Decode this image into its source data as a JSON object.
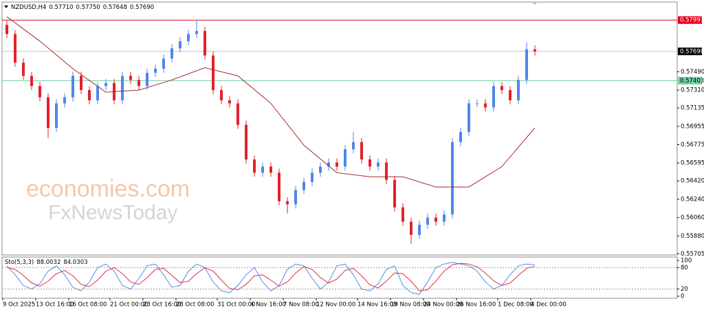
{
  "chart_data": {
    "type": "candlestick",
    "title": "NZDUSD,H4",
    "last_ohlc": [
      {
        "value": 0.5771,
        "label": "0.57710"
      },
      {
        "value": 0.5775,
        "label": "0.57750"
      },
      {
        "value": 0.57648,
        "label": "0.57648"
      },
      {
        "value": 0.5769,
        "label": "0.57690"
      }
    ],
    "watermark": [
      "economies.com",
      "FxNewsToday"
    ],
    "categories": [
      "9 Oct 2025",
      null,
      null,
      null,
      "13 Oct 16:00",
      null,
      null,
      null,
      "16 Oct 08:00",
      null,
      null,
      null,
      null,
      "21 Oct 00:00",
      null,
      null,
      null,
      "23 Oct 16:00",
      null,
      null,
      null,
      "28 Oct 08:00",
      null,
      null,
      null,
      null,
      "31 Oct 00:00",
      null,
      null,
      null,
      "4 Nov 16:00",
      null,
      null,
      null,
      "7 Nov 08:00",
      null,
      null,
      null,
      "12 Nov 00:00",
      null,
      null,
      null,
      null,
      "14 Nov 16:00",
      null,
      null,
      null,
      "19 Nov 08:00",
      null,
      null,
      null,
      "24 Nov 00:00",
      null,
      null,
      null,
      "26 Nov 16:00",
      null,
      null,
      null,
      null,
      "1 Dec 08:00",
      null,
      null,
      null,
      "4 Dec 00:00"
    ],
    "open": [
      0.5795,
      0.5786,
      0.5758,
      0.5745,
      0.5735,
      0.5724,
      0.5694,
      0.5718,
      0.5724,
      0.5745,
      0.5731,
      0.5721,
      0.5735,
      0.5738,
      0.5721,
      0.5745,
      0.5741,
      0.5735,
      0.5748,
      0.5752,
      0.5762,
      0.5772,
      0.5779,
      0.5786,
      0.5789,
      0.5765,
      0.5731,
      0.5721,
      0.5718,
      0.5697,
      0.5663,
      0.565,
      0.5656,
      0.565,
      0.5622,
      0.5619,
      0.5633,
      0.5641,
      0.565,
      0.5656,
      0.566,
      0.5656,
      0.5673,
      0.568,
      0.5663,
      0.5656,
      0.566,
      0.5643,
      0.5616,
      0.5602,
      0.5589,
      0.5599,
      0.5606,
      0.5602,
      0.5609,
      0.568,
      0.569,
      0.5718,
      0.5718,
      0.5714,
      0.5735,
      0.5731,
      0.5721,
      0.5741,
      0.5771
    ],
    "high": [
      0.5799,
      0.579,
      0.5762,
      0.5749,
      0.5739,
      0.5728,
      0.5722,
      0.5728,
      0.5749,
      0.5749,
      0.5735,
      0.5739,
      0.5742,
      0.5742,
      0.5749,
      0.5749,
      0.5745,
      0.5752,
      0.5756,
      0.5766,
      0.5776,
      0.5783,
      0.579,
      0.58,
      0.5793,
      0.5769,
      0.5735,
      0.5725,
      0.5722,
      0.5701,
      0.5667,
      0.566,
      0.566,
      0.5654,
      0.5626,
      0.5637,
      0.5645,
      0.5654,
      0.566,
      0.5664,
      0.5664,
      0.5677,
      0.569,
      0.5684,
      0.5667,
      0.5664,
      0.5664,
      0.5647,
      0.562,
      0.5606,
      0.5603,
      0.561,
      0.561,
      0.5613,
      0.5684,
      0.5694,
      0.5722,
      0.5722,
      0.5722,
      0.5739,
      0.5739,
      0.5735,
      0.5745,
      0.5778,
      0.5775
    ],
    "low": [
      0.5782,
      0.5754,
      0.5741,
      0.5731,
      0.572,
      0.5684,
      0.569,
      0.5714,
      0.572,
      0.5727,
      0.5717,
      0.5717,
      0.5731,
      0.5717,
      0.5717,
      0.5737,
      0.5731,
      0.5731,
      0.5744,
      0.5748,
      0.5758,
      0.5768,
      0.5775,
      0.5782,
      0.5761,
      0.5727,
      0.5717,
      0.5714,
      0.5693,
      0.5659,
      0.5646,
      0.5646,
      0.5646,
      0.5618,
      0.561,
      0.5615,
      0.5629,
      0.5637,
      0.5646,
      0.5652,
      0.5652,
      0.5652,
      0.5669,
      0.5659,
      0.5652,
      0.5652,
      0.5639,
      0.5612,
      0.5598,
      0.558,
      0.5585,
      0.5595,
      0.5598,
      0.5598,
      0.5605,
      0.5676,
      0.5686,
      0.5714,
      0.571,
      0.571,
      0.5727,
      0.5717,
      0.5717,
      0.5737,
      0.57648
    ],
    "close": [
      0.5786,
      0.5758,
      0.5745,
      0.5735,
      0.5724,
      0.5694,
      0.5718,
      0.5724,
      0.5745,
      0.5731,
      0.5721,
      0.5735,
      0.5738,
      0.5721,
      0.5745,
      0.5741,
      0.5735,
      0.5748,
      0.5752,
      0.5762,
      0.5772,
      0.5779,
      0.5786,
      0.5789,
      0.5765,
      0.5731,
      0.5721,
      0.5718,
      0.5697,
      0.5663,
      0.565,
      0.5656,
      0.565,
      0.5622,
      0.5619,
      0.5633,
      0.5641,
      0.565,
      0.5656,
      0.566,
      0.5656,
      0.5673,
      0.568,
      0.5663,
      0.5656,
      0.566,
      0.5643,
      0.5616,
      0.5602,
      0.5589,
      0.5599,
      0.5606,
      0.5602,
      0.5609,
      0.568,
      0.569,
      0.5718,
      0.5718,
      0.5714,
      0.5735,
      0.5731,
      0.5721,
      0.5741,
      0.5771,
      0.5769
    ],
    "up_color": "#4f86e8",
    "down_color": "#e3202b",
    "ma": {
      "color": "#a52a2a",
      "x": [
        0,
        4,
        8,
        12,
        16,
        20,
        24,
        28,
        32,
        36,
        40,
        44,
        48,
        52,
        56,
        60,
        64
      ],
      "values": [
        0.5803,
        0.5779,
        0.5752,
        0.5729,
        0.5731,
        0.5741,
        0.5753,
        0.5745,
        0.5718,
        0.5677,
        0.565,
        0.5646,
        0.5646,
        0.5636,
        0.5636,
        0.5656,
        0.5694
      ]
    },
    "ylim": [
      0.557,
      0.5814
    ],
    "yticks": [
      {
        "value": 0.5749,
        "label": "0.57490"
      },
      {
        "value": 0.5731,
        "label": "0.57310"
      },
      0.57135,
      0.56955,
      0.56775,
      0.56595,
      {
        "value": 0.5642,
        "label": "0.56420"
      },
      {
        "value": 0.5624,
        "label": "0.56240"
      },
      {
        "value": 0.5606,
        "label": "0.56060"
      },
      {
        "value": 0.5588,
        "label": "0.55880"
      },
      0.55705
    ],
    "levels": [
      {
        "value": 0.57997,
        "color": "#e8001c",
        "box": "#e8001c",
        "text_color": "#ffffff"
      },
      {
        "value": {
          "value": 0.5769,
          "label": "0.57690"
        },
        "color": "#c4c4c4",
        "box": "#000000",
        "text_color": "#ffffff"
      },
      {
        "value": 0.57403,
        "color": "#6fcfa2",
        "box": "#6fcfa2",
        "text_color": "#000000"
      }
    ],
    "indicator": {
      "type": "line",
      "title": "Sto(5,3,3)",
      "readings": [
        88.0032,
        84.0303
      ],
      "ylim": [
        0,
        100
      ],
      "yticks": [
        100,
        80,
        20,
        0
      ],
      "levels": [
        80,
        20
      ],
      "series": [
        {
          "color": "#4a90e2",
          "values": [
            85,
            60,
            30,
            20,
            35,
            70,
            85,
            60,
            25,
            15,
            40,
            80,
            90,
            70,
            30,
            20,
            50,
            85,
            90,
            60,
            25,
            30,
            70,
            90,
            80,
            40,
            15,
            10,
            30,
            60,
            80,
            40,
            15,
            30,
            75,
            90,
            85,
            50,
            20,
            40,
            85,
            90,
            60,
            20,
            15,
            35,
            75,
            85,
            30,
            10,
            5,
            40,
            80,
            90,
            95,
            90,
            85,
            70,
            40,
            20,
            30,
            60,
            85,
            90,
            88.0032
          ]
        },
        {
          "color": "#e0303a",
          "values": [
            80,
            75,
            58,
            37,
            28,
            42,
            63,
            72,
            57,
            33,
            27,
            45,
            70,
            80,
            63,
            40,
            33,
            52,
            75,
            78,
            58,
            38,
            42,
            63,
            80,
            70,
            45,
            22,
            18,
            33,
            57,
            60,
            45,
            28,
            40,
            65,
            83,
            75,
            52,
            37,
            48,
            72,
            78,
            57,
            32,
            23,
            42,
            65,
            63,
            42,
            15,
            18,
            42,
            70,
            88,
            92,
            90,
            82,
            65,
            43,
            30,
            37,
            58,
            78,
            84.0303
          ]
        }
      ]
    }
  }
}
